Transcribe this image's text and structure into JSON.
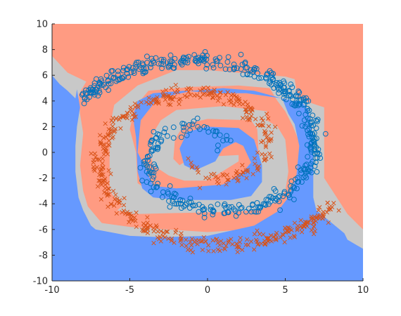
{
  "chart_data": {
    "type": "scatter",
    "title": "",
    "xlabel": "",
    "ylabel": "",
    "xlim": [
      -10,
      10
    ],
    "ylim": [
      -10,
      10
    ],
    "x_ticks": [
      -10,
      -5,
      0,
      5,
      10
    ],
    "y_ticks": [
      -10,
      -8,
      -6,
      -4,
      -2,
      0,
      2,
      4,
      6,
      8,
      10
    ],
    "grid": false,
    "legend": "none",
    "regions": [
      {
        "class": "cross",
        "color": "#ff9b82",
        "polygon": [
          [
            -10,
            10
          ],
          [
            10,
            10
          ],
          [
            10,
            -6
          ],
          [
            9,
            -4.8
          ],
          [
            7.5,
            -2
          ],
          [
            7.5,
            3.5
          ],
          [
            7,
            3.7
          ],
          [
            5.8,
            4.2
          ],
          [
            5.6,
            5.7
          ],
          [
            5,
            5.9
          ],
          [
            0,
            6.4
          ],
          [
            -1,
            6.4
          ],
          [
            -2,
            6.4
          ],
          [
            -4.5,
            5.2
          ],
          [
            -6,
            3.7
          ],
          [
            -6.2,
            2.5
          ],
          [
            -6.3,
            1
          ],
          [
            -6.3,
            -3
          ],
          [
            -5.5,
            -4.2
          ],
          [
            -5.8,
            -4.5
          ],
          [
            -5,
            -4.8
          ],
          [
            -4.5,
            -4.8
          ],
          [
            2,
            -4.6
          ],
          [
            3.5,
            -4.4
          ],
          [
            4.5,
            -3.8
          ],
          [
            5,
            -3
          ],
          [
            5.2,
            -1.5
          ],
          [
            5,
            1
          ],
          [
            4.5,
            2
          ],
          [
            3.8,
            2.5
          ],
          [
            3.8,
            3.2
          ],
          [
            1,
            3.6
          ],
          [
            -2,
            3.3
          ],
          [
            -3,
            2.5
          ],
          [
            -3.5,
            1.5
          ],
          [
            -3.7,
            0
          ],
          [
            -3.5,
            -1
          ],
          [
            -2.5,
            -1.8
          ],
          [
            -1.5,
            -2.2
          ],
          [
            0,
            -2.2
          ],
          [
            2,
            -0.7
          ],
          [
            2,
            -0.2
          ],
          [
            -1,
            -0.4
          ],
          [
            -1.8,
            -1
          ],
          [
            -2.2,
            -0.5
          ],
          [
            -2.1,
            1
          ],
          [
            -1.5,
            2.2
          ],
          [
            0,
            2.6
          ],
          [
            2.8,
            2.5
          ],
          [
            3.2,
            1.8
          ],
          [
            3.3,
            -0.3
          ],
          [
            3.2,
            -2
          ],
          [
            2.4,
            -3
          ],
          [
            0,
            -3.3
          ],
          [
            -3.5,
            -3.2
          ],
          [
            -4.5,
            -2.4
          ],
          [
            -4.6,
            0
          ],
          [
            -5,
            1.8
          ],
          [
            -4.7,
            3.5
          ],
          [
            -3.8,
            4.8
          ],
          [
            -1,
            5.1
          ],
          [
            2,
            5.2
          ],
          [
            4,
            5
          ],
          [
            4.5,
            4
          ],
          [
            5,
            3.2
          ],
          [
            5.5,
            2
          ],
          [
            6,
            0.5
          ],
          [
            6.2,
            -1.5
          ],
          [
            6,
            -3
          ],
          [
            5.5,
            -4.3
          ],
          [
            4.5,
            -5.2
          ],
          [
            2.5,
            -6
          ],
          [
            0,
            -6.2
          ],
          [
            -5,
            -5.8
          ],
          [
            -6.8,
            -5.5
          ],
          [
            -7.7,
            -4.2
          ],
          [
            -8,
            -3
          ],
          [
            -8.2,
            -1
          ],
          [
            -8,
            1.5
          ],
          [
            -8.2,
            3
          ],
          [
            -8.3,
            4.5
          ],
          [
            -7.8,
            5.5
          ],
          [
            -9,
            6.2
          ],
          [
            -10,
            7.5
          ]
        ]
      },
      {
        "class": "circle",
        "color": "#6699ff",
        "polygon": [
          [
            -10,
            6
          ],
          [
            -10,
            -10
          ],
          [
            10,
            -10
          ],
          [
            10,
            -7.5
          ],
          [
            9,
            -6.8
          ],
          [
            8.8,
            -6.3
          ],
          [
            7,
            -4.5
          ],
          [
            6.8,
            -3.5
          ],
          [
            6.8,
            -1.8
          ],
          [
            6.8,
            0.8
          ],
          [
            6.5,
            3.3
          ],
          [
            6,
            4
          ],
          [
            5.5,
            4
          ],
          [
            4.8,
            4.2
          ],
          [
            3,
            4.8
          ],
          [
            1,
            5
          ],
          [
            -1,
            4.8
          ],
          [
            -3.2,
            4.2
          ],
          [
            -4.3,
            2.5
          ],
          [
            -4.5,
            0
          ],
          [
            -4,
            -1.2
          ],
          [
            -3.5,
            -2.6
          ],
          [
            -2,
            -2.8
          ],
          [
            1,
            -2.5
          ],
          [
            2.3,
            -1.5
          ],
          [
            2.8,
            -0.8
          ],
          [
            2.3,
            0.5
          ],
          [
            1.8,
            0.8
          ],
          [
            1,
            0.3
          ],
          [
            0.5,
            -0.7
          ],
          [
            -0.8,
            -1.4
          ],
          [
            -1.5,
            -1
          ],
          [
            -1.8,
            0.3
          ],
          [
            -1.3,
            1.6
          ],
          [
            0,
            2
          ],
          [
            2,
            1.9
          ],
          [
            3,
            1
          ],
          [
            3.5,
            -1
          ],
          [
            3.5,
            -2.3
          ],
          [
            2.8,
            -3.4
          ],
          [
            1.5,
            -3.7
          ],
          [
            -2,
            -3.7
          ],
          [
            -3.5,
            -3.5
          ],
          [
            -4.2,
            -2.8
          ],
          [
            -4.5,
            -1.5
          ],
          [
            -4.6,
            1.2
          ],
          [
            -4.8,
            2.8
          ],
          [
            -4.5,
            4
          ],
          [
            -3.5,
            4.6
          ],
          [
            -1.5,
            4.8
          ],
          [
            0.5,
            4.6
          ],
          [
            2.5,
            4.6
          ],
          [
            4.8,
            4.2
          ],
          [
            5.2,
            3
          ],
          [
            5.6,
            2.2
          ],
          [
            5.9,
            0.5
          ],
          [
            5.7,
            -2
          ],
          [
            5.2,
            -3.5
          ],
          [
            4.5,
            -4.6
          ],
          [
            3,
            -5.7
          ],
          [
            0,
            -6.5
          ],
          [
            -3,
            -6.6
          ],
          [
            -5,
            -6.5
          ],
          [
            -7.2,
            -6
          ],
          [
            -7.5,
            -5.7
          ],
          [
            -8,
            -4.5
          ],
          [
            -8.3,
            -3.5
          ],
          [
            -8.5,
            -1.5
          ],
          [
            -8.5,
            0.5
          ],
          [
            -8.4,
            2
          ],
          [
            -8.2,
            3.5
          ],
          [
            -8.4,
            4.9
          ],
          [
            -8.5,
            4.2
          ],
          [
            -9,
            4.8
          ],
          [
            -9.5,
            5.3
          ]
        ]
      },
      {
        "class": "boundary",
        "color": "#c8c8c8"
      }
    ],
    "series": [
      {
        "marker": "circle",
        "color": "#0072bd",
        "spiral": {
          "start_angle": 0.4,
          "turns": 1.35,
          "r_start": 1.0,
          "r_end": 9.4,
          "phase": 0
        }
      },
      {
        "marker": "cross",
        "color": "#d95319",
        "spiral": {
          "start_angle": 0.4,
          "turns": 1.35,
          "r_start": 1.0,
          "r_end": 9.4,
          "phase": 3.14159
        }
      }
    ]
  }
}
